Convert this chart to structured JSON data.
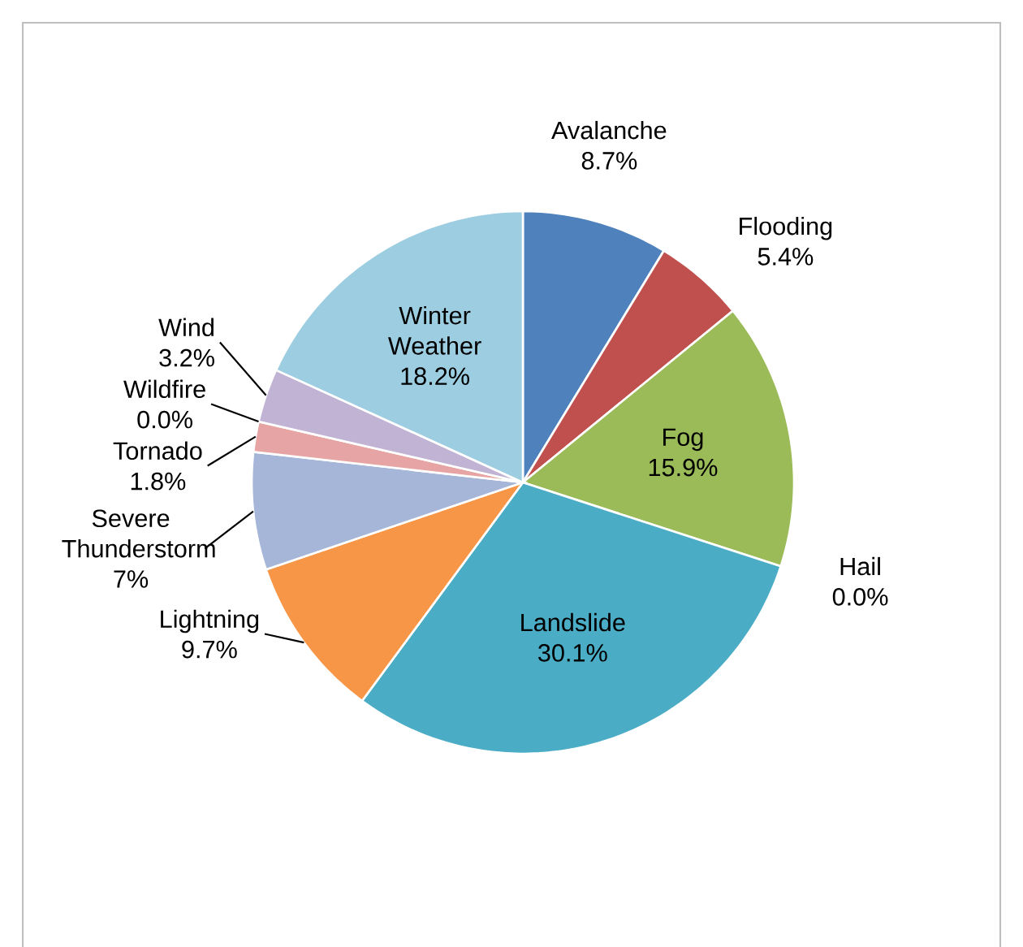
{
  "chart_data": {
    "type": "pie",
    "categories": [
      "Avalanche",
      "Flooding",
      "Fog",
      "Hail",
      "Landslide",
      "Lightning",
      "Severe Thunderstorm",
      "Tornado",
      "Wildfire",
      "Wind",
      "Winter Weather"
    ],
    "values": [
      8.7,
      5.4,
      15.9,
      0.0,
      30.1,
      9.7,
      7,
      1.8,
      0.0,
      3.2,
      18.2
    ],
    "value_labels": [
      "8.7%",
      "5.4%",
      "15.9%",
      "0.0%",
      "30.1%",
      "9.7%",
      "7%",
      "1.8%",
      "0.0%",
      "3.2%",
      "18.2%"
    ],
    "colors": [
      "#4f81bd",
      "#c0504d",
      "#9bbb59",
      "#8064a2",
      "#4bacc6",
      "#f79646",
      "#a5b6d8",
      "#e6a5a4",
      "#d7e4bd",
      "#c0b3d3",
      "#9dcde0"
    ]
  }
}
